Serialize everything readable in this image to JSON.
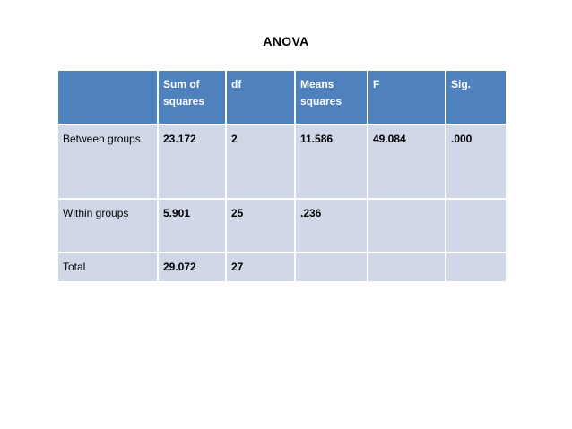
{
  "title": "ANOVA",
  "table": {
    "headers": [
      "",
      "Sum of squares",
      "df",
      "Means squares",
      "F",
      "Sig."
    ],
    "rows": [
      {
        "label": "Between groups",
        "cells": [
          "23.172",
          "2",
          "11.586",
          "49.084",
          ".000"
        ]
      },
      {
        "label": "Within groups",
        "cells": [
          "5.901",
          "25",
          ".236",
          "",
          ""
        ]
      },
      {
        "label": "Total",
        "cells": [
          "29.072",
          "27",
          "",
          "",
          ""
        ]
      }
    ]
  },
  "colors": {
    "header_bg": "#4f81bd",
    "header_text": "#ffffff",
    "body_bg": "#d0d8e8",
    "border": "#ffffff"
  }
}
